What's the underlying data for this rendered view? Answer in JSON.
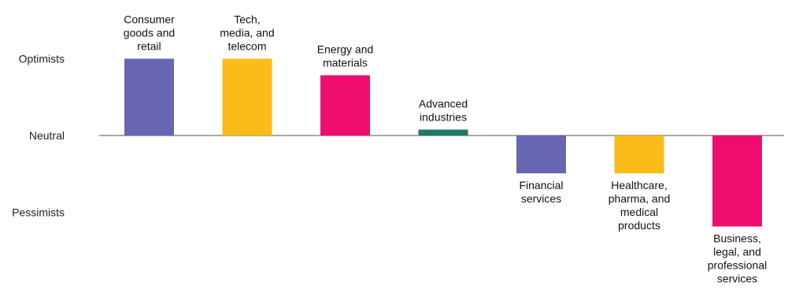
{
  "chart_data": {
    "type": "bar",
    "y_axis_labels": [
      {
        "label": "Optimists",
        "value": 65
      },
      {
        "label": "Neutral",
        "value": 0
      },
      {
        "label": "Pessimists",
        "value": -65
      }
    ],
    "ylim": [
      -80,
      65
    ],
    "grid": false,
    "legend": "none",
    "categories": [
      "Consumer goods and retail",
      "Tech, media, and telecom",
      "Energy and materials",
      "Advanced industries",
      "Financial services",
      "Healthcare, pharma, and medical products",
      "Business, legal, and professional services"
    ],
    "category_lines": [
      [
        "Consumer",
        "goods and",
        "retail"
      ],
      [
        "Tech,",
        "media, and",
        "telecom"
      ],
      [
        "Energy and",
        "materials"
      ],
      [
        "Advanced",
        "industries"
      ],
      [
        "Financial",
        "services"
      ],
      [
        "Healthcare,",
        "pharma, and",
        "medical",
        "products"
      ],
      [
        "Business,",
        "legal, and",
        "professional",
        "services"
      ]
    ],
    "values": [
      65,
      65,
      51,
      5,
      -32,
      -32,
      -77
    ],
    "colors": [
      "#6666b3",
      "#fbbb18",
      "#ef0d70",
      "#1d7a63",
      "#6666b3",
      "#fbbb18",
      "#ef0d70"
    ]
  }
}
